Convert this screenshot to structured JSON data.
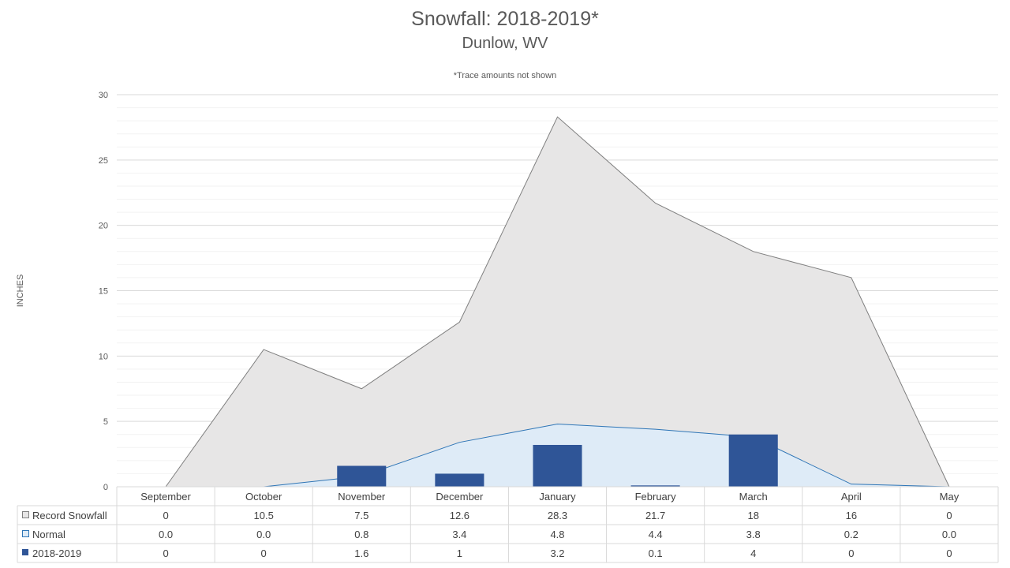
{
  "chart_data": {
    "type": "area",
    "title": "Snowfall: 2018-2019*",
    "subtitle": "Dunlow, WV",
    "note": "*Trace amounts not shown",
    "ylabel": "INCHES",
    "ylim": [
      0,
      30
    ],
    "yticks": [
      0,
      5,
      10,
      15,
      20,
      25,
      30
    ],
    "categories": [
      "September",
      "October",
      "November",
      "December",
      "January",
      "February",
      "March",
      "April",
      "May"
    ],
    "series": [
      {
        "name": "Record Snowfall",
        "kind": "area",
        "color": "#e7e6e6",
        "stroke": "#7f7f7f",
        "values": [
          0,
          10.5,
          7.5,
          12.6,
          28.3,
          21.7,
          18,
          16,
          0
        ],
        "labels": [
          "0",
          "10.5",
          "7.5",
          "12.6",
          "28.3",
          "21.7",
          "18",
          "16",
          "0"
        ]
      },
      {
        "name": "Normal",
        "kind": "area",
        "color": "#deebf7",
        "stroke": "#2e75b6",
        "values": [
          0.0,
          0.0,
          0.8,
          3.4,
          4.8,
          4.4,
          3.8,
          0.2,
          0.0
        ],
        "labels": [
          "0.0",
          "0.0",
          "0.8",
          "3.4",
          "4.8",
          "4.4",
          "3.8",
          "0.2",
          "0.0"
        ]
      },
      {
        "name": "2018-2019",
        "kind": "bar",
        "color": "#2f5597",
        "values": [
          0,
          0,
          1.6,
          1,
          3.2,
          0.1,
          4,
          0,
          0
        ],
        "labels": [
          "0",
          "0",
          "1.6",
          "1",
          "3.2",
          "0.1",
          "4",
          "0",
          "0"
        ]
      }
    ],
    "grid": true,
    "legend": "data-table-left"
  }
}
